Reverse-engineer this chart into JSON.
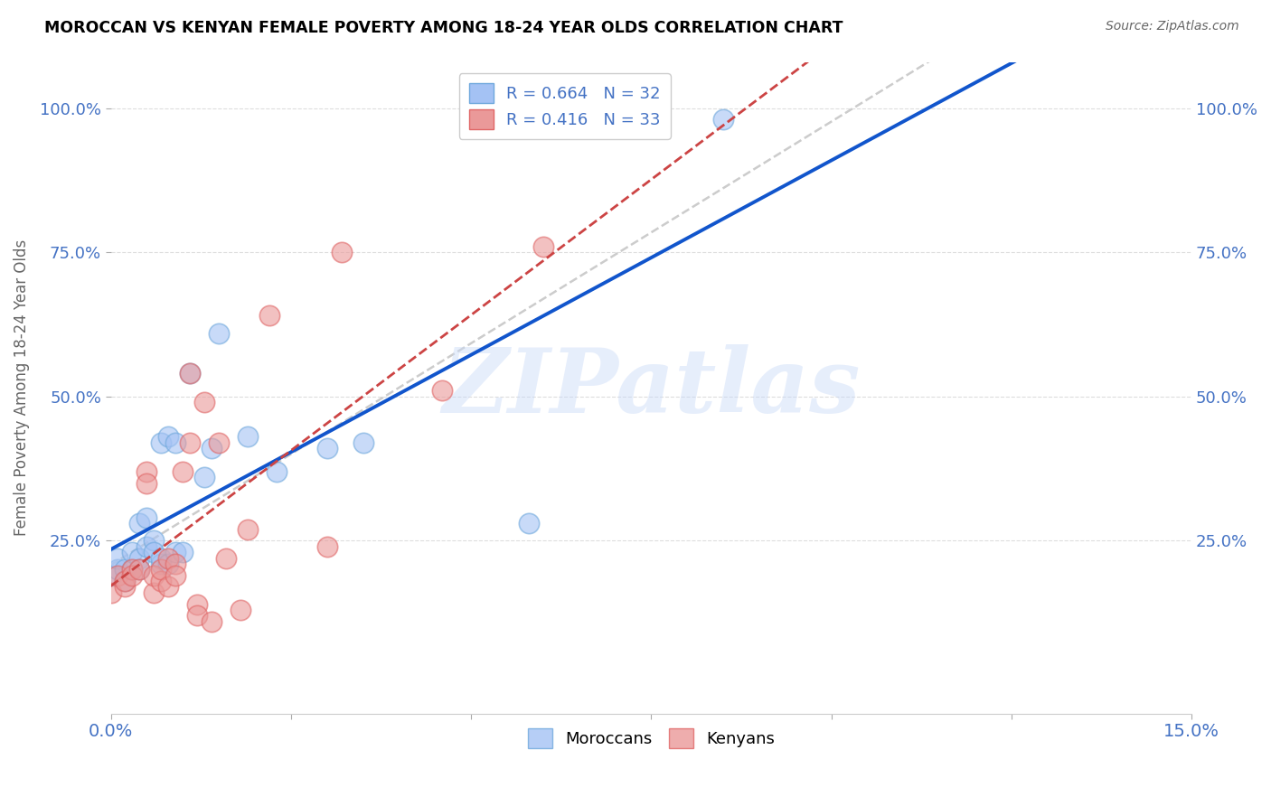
{
  "title": "MOROCCAN VS KENYAN FEMALE POVERTY AMONG 18-24 YEAR OLDS CORRELATION CHART",
  "source": "Source: ZipAtlas.com",
  "ylabel_label": "Female Poverty Among 18-24 Year Olds",
  "x_min": 0.0,
  "x_max": 0.15,
  "y_min": -0.05,
  "y_max": 1.08,
  "x_tick_positions": [
    0.0,
    0.025,
    0.05,
    0.075,
    0.1,
    0.125,
    0.15
  ],
  "x_tick_labels_show": [
    "0.0%",
    "",
    "",
    "",
    "",
    "",
    "15.0%"
  ],
  "y_ticks": [
    0.25,
    0.5,
    0.75,
    1.0
  ],
  "y_tick_labels": [
    "25.0%",
    "50.0%",
    "75.0%",
    "100.0%"
  ],
  "watermark": "ZIPatlas",
  "legend_moroccan_R": "0.664",
  "legend_moroccan_N": "32",
  "legend_kenyan_R": "0.416",
  "legend_kenyan_N": "33",
  "moroccan_color": "#a4c2f4",
  "kenyan_color": "#ea9999",
  "moroccan_marker_edge": "#6fa8dc",
  "kenyan_marker_edge": "#e06666",
  "moroccan_line_color": "#1155cc",
  "kenyan_line_color": "#cc4444",
  "trend_dashed_color": "#cccccc",
  "tick_label_color": "#4472c4",
  "title_color": "#000000",
  "moroccan_points_x": [
    0.0,
    0.001,
    0.001,
    0.002,
    0.002,
    0.003,
    0.003,
    0.004,
    0.004,
    0.004,
    0.005,
    0.005,
    0.006,
    0.006,
    0.007,
    0.007,
    0.007,
    0.008,
    0.008,
    0.009,
    0.009,
    0.01,
    0.011,
    0.013,
    0.014,
    0.015,
    0.019,
    0.023,
    0.03,
    0.035,
    0.058,
    0.085
  ],
  "moroccan_points_y": [
    0.19,
    0.2,
    0.22,
    0.2,
    0.18,
    0.2,
    0.23,
    0.22,
    0.2,
    0.28,
    0.24,
    0.29,
    0.25,
    0.23,
    0.21,
    0.22,
    0.42,
    0.43,
    0.21,
    0.42,
    0.23,
    0.23,
    0.54,
    0.36,
    0.41,
    0.61,
    0.43,
    0.37,
    0.41,
    0.42,
    0.28,
    0.98
  ],
  "kenyan_points_x": [
    0.0,
    0.001,
    0.002,
    0.002,
    0.003,
    0.003,
    0.004,
    0.005,
    0.005,
    0.006,
    0.006,
    0.007,
    0.007,
    0.008,
    0.008,
    0.009,
    0.009,
    0.01,
    0.011,
    0.011,
    0.012,
    0.012,
    0.013,
    0.014,
    0.015,
    0.016,
    0.018,
    0.019,
    0.022,
    0.03,
    0.032,
    0.046,
    0.06
  ],
  "kenyan_points_y": [
    0.16,
    0.19,
    0.17,
    0.18,
    0.2,
    0.19,
    0.2,
    0.37,
    0.35,
    0.16,
    0.19,
    0.18,
    0.2,
    0.22,
    0.17,
    0.21,
    0.19,
    0.37,
    0.42,
    0.54,
    0.14,
    0.12,
    0.49,
    0.11,
    0.42,
    0.22,
    0.13,
    0.27,
    0.64,
    0.24,
    0.75,
    0.51,
    0.76
  ],
  "background_color": "#ffffff",
  "grid_color": "#dddddd"
}
